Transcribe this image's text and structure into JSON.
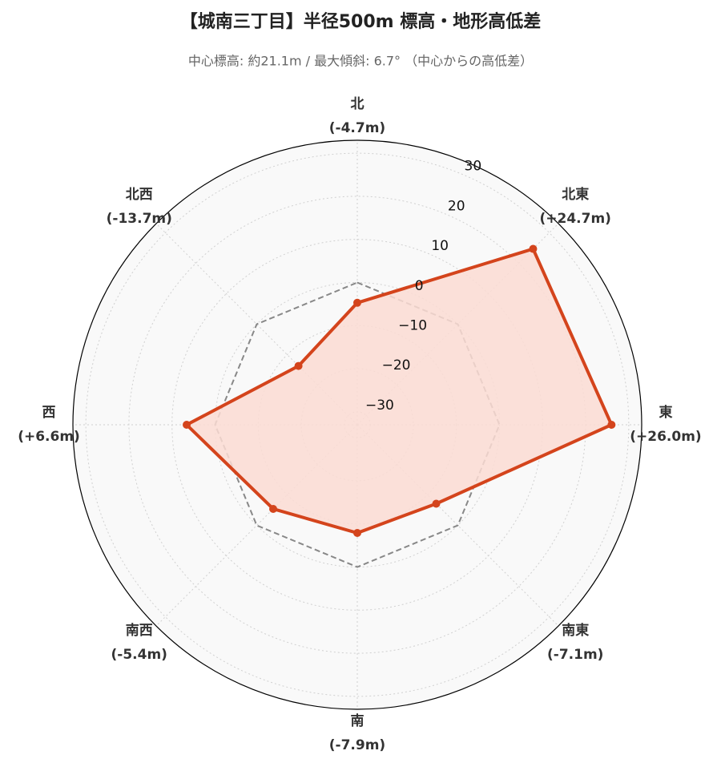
{
  "chart_data": {
    "type": "radar",
    "title": "【城南三丁目】半径500m 標高・地形高低差",
    "subtitle": "中心標高: 約21.1m / 最大傾斜: 6.7° （中心からの高低差）",
    "categories": [
      "北",
      "北東",
      "東",
      "南東",
      "南",
      "南西",
      "西",
      "北西"
    ],
    "values": [
      -4.7,
      24.7,
      26.0,
      -7.1,
      -7.9,
      -5.4,
      6.6,
      -13.7
    ],
    "value_labels": [
      "(-4.7m)",
      "(+24.7m)",
      "(+26.0m)",
      "(-7.1m)",
      "(-7.9m)",
      "(-5.4m)",
      "(+6.6m)",
      "(-13.7m)"
    ],
    "color": "#d4441c",
    "fill_color": "#fbdcd4",
    "ylim": [
      -33,
      33
    ],
    "yticks": [
      {
        "value": -30,
        "label": "−30"
      },
      {
        "value": -20,
        "label": "−20"
      },
      {
        "value": -10,
        "label": "−10"
      },
      0,
      10,
      20,
      30
    ],
    "grid": true,
    "reference_line": {
      "value": 0,
      "color": "#888888",
      "style": "dashed"
    }
  }
}
